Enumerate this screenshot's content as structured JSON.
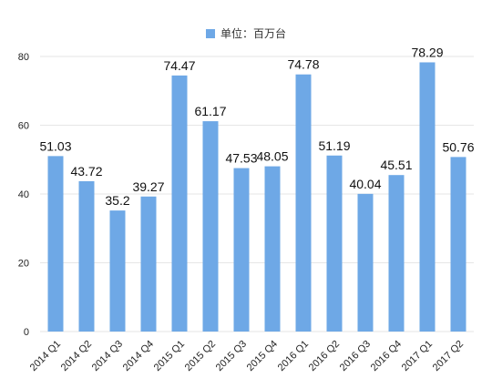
{
  "chart_data": {
    "type": "bar",
    "legend": "单位：百万台",
    "legend_position": "top",
    "bar_color": "#6ea8e6",
    "grid_color": "#e6e6e6",
    "grid": true,
    "categories": [
      "2014 Q1",
      "2014 Q2",
      "2014 Q3",
      "2014 Q4",
      "2015 Q1",
      "2015 Q2",
      "2015 Q3",
      "2015 Q4",
      "2016 Q1",
      "2016 Q2",
      "2016 Q3",
      "2016 Q4",
      "2017 Q1",
      "2017 Q2"
    ],
    "values": [
      51.03,
      43.72,
      35.2,
      39.27,
      74.47,
      61.17,
      47.53,
      48.05,
      74.78,
      51.19,
      40.04,
      45.51,
      78.29,
      50.76
    ],
    "value_labels": [
      "51.03",
      "43.72",
      "35.2",
      "39.27",
      "74.47",
      "61.17",
      "47.53",
      "48.05",
      "74.78",
      "51.19",
      "40.04",
      "45.51",
      "78.29",
      "50.76"
    ],
    "y_ticks": [
      "0",
      "20",
      "40",
      "60",
      "80"
    ],
    "ylim": [
      0,
      80
    ]
  }
}
